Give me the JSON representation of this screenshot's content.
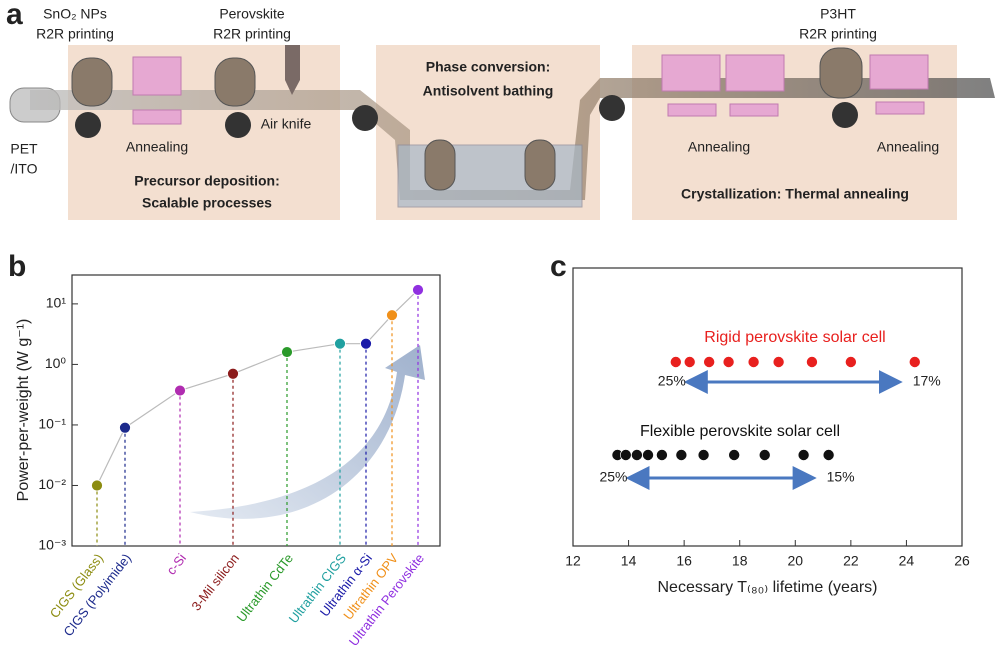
{
  "panel_a": {
    "letter": "a",
    "labels": [
      "SnO₂ NPs",
      "R2R printing",
      "Perovskite",
      "R2R printing",
      "Air knife",
      "PET",
      "/ITO",
      "Annealing",
      "Precursor deposition:",
      "Scalable processes",
      "Phase conversion:",
      "Antisolvent bathing",
      "P3HT",
      "R2R printing",
      "Annealing",
      "Annealing",
      "Crystallization: Thermal annealing"
    ]
  },
  "chart_data": [
    {
      "type": "lollipop",
      "letter": "b",
      "ylabel": "Power-per-weight (W g⁻¹)",
      "log_scale": true,
      "categories": [
        "CIGS (Glass)",
        "CIGS (Polyimide)",
        "c-Si",
        "3-Mil silicon",
        "Ultrathin CdTe",
        "Ultrathin CIGS",
        "Ultrathin α-Si",
        "Ultrathin OPV",
        "Ultrathin Perovskite"
      ],
      "values": [
        0.01,
        0.09,
        0.37,
        0.7,
        1.6,
        2.2,
        2.2,
        6.5,
        17
      ],
      "colors": [
        "#8c8c10",
        "#1c2a8c",
        "#b02cb0",
        "#8c1c1c",
        "#2a9a2a",
        "#20a0a0",
        "#1a1aa8",
        "#f0901a",
        "#9030e0"
      ],
      "ylim": [
        0.001,
        30
      ],
      "yticks": [
        {
          "value": 0.001,
          "label": "10⁻³"
        },
        {
          "value": 0.01,
          "label": "10⁻²"
        },
        {
          "value": 0.1,
          "label": "10⁻¹"
        },
        {
          "value": 1,
          "label": "10⁰"
        },
        {
          "value": 10,
          "label": "10¹"
        }
      ]
    },
    {
      "type": "scatter",
      "letter": "c",
      "xlabel": "Necessary T₍₈₀₎ lifetime (years)",
      "xlim": [
        12,
        26
      ],
      "xticks": [
        12,
        14,
        16,
        18,
        20,
        22,
        24,
        26
      ],
      "series": [
        {
          "name": "Rigid perovskite solar cell",
          "color": "#e8201e",
          "x": [
            15.7,
            16.2,
            16.9,
            17.6,
            18.5,
            19.4,
            20.6,
            22.0,
            24.3
          ],
          "range_labels": [
            "25%",
            "17%"
          ]
        },
        {
          "name": "Flexible perovskite solar cell",
          "color": "#111111",
          "x": [
            13.6,
            13.9,
            14.3,
            14.7,
            15.2,
            15.9,
            16.7,
            17.8,
            18.9,
            20.3,
            21.2
          ],
          "range_labels": [
            "25%",
            "15%"
          ]
        }
      ]
    }
  ]
}
